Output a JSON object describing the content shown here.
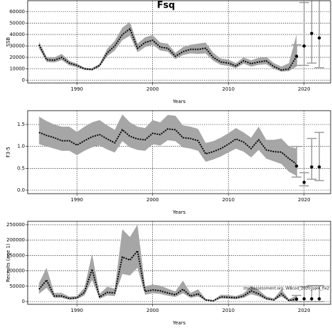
{
  "chart_data": [
    {
      "type": "band-line",
      "title": "Fsq",
      "ylabel": "SSB",
      "xlabel": "Years",
      "xlim": [
        1983.5,
        2023.5
      ],
      "xticks": [
        1990,
        2000,
        2010,
        2020
      ],
      "ylim": [
        -2400,
        69600
      ],
      "yticks": [
        0,
        10000,
        20000,
        30000,
        40000,
        50000,
        60000
      ],
      "grid": true,
      "color": "#000000",
      "band_color": "#a6a6a6",
      "error_color": "#9a9a9a",
      "x": [
        1985,
        1986,
        1987,
        1988,
        1989,
        1990,
        1991,
        1992,
        1993,
        1994,
        1995,
        1996,
        1997,
        1998,
        1999,
        2000,
        2001,
        2002,
        2003,
        2004,
        2005,
        2006,
        2007,
        2008,
        2009,
        2010,
        2011,
        2012,
        2013,
        2014,
        2015,
        2016,
        2017,
        2018,
        2019
      ],
      "values": [
        31000,
        18000,
        17500,
        20000,
        15000,
        13000,
        10000,
        9500,
        13000,
        24000,
        30000,
        40000,
        45000,
        28000,
        33000,
        35000,
        29000,
        28000,
        21000,
        25000,
        27000,
        27000,
        28000,
        20000,
        16000,
        15000,
        12500,
        17000,
        14500,
        16000,
        17000,
        12000,
        9000,
        10000,
        21000
      ],
      "lower": [
        28000,
        16000,
        15500,
        17500,
        13000,
        11500,
        9000,
        8500,
        11500,
        21000,
        26000,
        35000,
        39000,
        24500,
        29000,
        31000,
        26000,
        25000,
        18500,
        22000,
        23500,
        23000,
        23500,
        17000,
        13500,
        12500,
        10500,
        14500,
        12000,
        13500,
        14000,
        10000,
        7500,
        8000,
        12000
      ],
      "upper": [
        34000,
        20500,
        20000,
        23000,
        17000,
        14500,
        11000,
        10500,
        14500,
        27500,
        34500,
        46000,
        51000,
        32000,
        37500,
        39500,
        33000,
        32000,
        24000,
        29000,
        31000,
        32000,
        33000,
        24000,
        19000,
        18000,
        15000,
        20000,
        17500,
        19500,
        20500,
        15000,
        12000,
        15000,
        40000
      ],
      "projection": {
        "x": [
          2019,
          2020,
          2021,
          2022
        ],
        "values": [
          21000,
          30000,
          41000,
          37000
        ],
        "lower": [
          13000,
          13000,
          15000,
          11000
        ],
        "upper": [
          31000,
          68000,
          75000,
          75000
        ]
      }
    },
    {
      "type": "band-line",
      "ylabel": "F3-5",
      "xlabel": "Years",
      "xlim": [
        1983.5,
        2023.5
      ],
      "xticks": [
        1990,
        2000,
        2010,
        2020
      ],
      "ylim": [
        -0.079,
        1.816
      ],
      "yticks": [
        {
          "value": 0,
          "label": "0.0"
        },
        0.5,
        {
          "value": 1,
          "label": "1.0"
        },
        1.5
      ],
      "grid": true,
      "color": "#000000",
      "band_color": "#a6a6a6",
      "error_color": "#9a9a9a",
      "x": [
        1985,
        1986,
        1987,
        1988,
        1989,
        1990,
        1991,
        1992,
        1993,
        1994,
        1995,
        1996,
        1997,
        1998,
        1999,
        2000,
        2001,
        2002,
        2003,
        2004,
        2005,
        2006,
        2007,
        2008,
        2009,
        2010,
        2011,
        2012,
        2013,
        2014,
        2015,
        2016,
        2017,
        2018,
        2019
      ],
      "values": [
        1.32,
        1.25,
        1.2,
        1.13,
        1.13,
        1.03,
        1.13,
        1.22,
        1.27,
        1.17,
        1.08,
        1.38,
        1.23,
        1.17,
        1.15,
        1.3,
        1.27,
        1.4,
        1.38,
        1.2,
        1.18,
        1.13,
        0.83,
        0.88,
        0.95,
        1.05,
        1.17,
        1.1,
        0.95,
        1.15,
        0.92,
        0.88,
        0.87,
        0.72,
        0.6
      ],
      "lower": [
        1.05,
        1.0,
        0.95,
        0.9,
        0.9,
        0.8,
        0.9,
        0.98,
        1.02,
        0.93,
        0.86,
        1.12,
        0.98,
        0.92,
        0.9,
        1.05,
        1.02,
        1.14,
        1.12,
        0.98,
        0.95,
        0.9,
        0.65,
        0.7,
        0.77,
        0.86,
        0.95,
        0.88,
        0.75,
        0.92,
        0.72,
        0.66,
        0.6,
        0.42,
        0.33
      ],
      "upper": [
        1.68,
        1.58,
        1.5,
        1.45,
        1.45,
        1.33,
        1.45,
        1.55,
        1.6,
        1.48,
        1.38,
        1.73,
        1.55,
        1.45,
        1.42,
        1.6,
        1.55,
        1.72,
        1.7,
        1.48,
        1.45,
        1.4,
        1.08,
        1.12,
        1.2,
        1.3,
        1.42,
        1.32,
        1.2,
        1.45,
        1.15,
        1.15,
        1.18,
        1.0,
        0.95
      ],
      "projection": {
        "x": [
          2019,
          2020,
          2021,
          2022
        ],
        "values": [
          0.55,
          0.18,
          0.53,
          0.53
        ],
        "lower": [
          0.3,
          0.1,
          0.25,
          0.22
        ],
        "upper": [
          1.0,
          0.4,
          1.18,
          1.32
        ]
      }
    },
    {
      "type": "band-line",
      "ylabel": "Recruits (age 1)",
      "xlabel": "Years",
      "annotation": "stockassessment.org, WBcod_2020_spl4_fix2",
      "xlim": [
        1983.5,
        2023.5
      ],
      "xticks": [
        1990,
        2000,
        2010,
        2020
      ],
      "ylim": [
        -9000,
        261000
      ],
      "yticks": [
        0,
        50000,
        100000,
        150000,
        200000,
        250000
      ],
      "grid": true,
      "color": "#000000",
      "band_color": "#a6a6a6",
      "error_color": "#9a9a9a",
      "x": [
        1985,
        1986,
        1987,
        1988,
        1989,
        1990,
        1991,
        1992,
        1993,
        1994,
        1995,
        1996,
        1997,
        1998,
        1999,
        2000,
        2001,
        2002,
        2003,
        2004,
        2005,
        2006,
        2007,
        2008,
        2009,
        2010,
        2011,
        2012,
        2013,
        2014,
        2015,
        2016,
        2017,
        2018,
        2019
      ],
      "values": [
        40000,
        70000,
        18000,
        18000,
        10000,
        12000,
        30000,
        105000,
        15000,
        30000,
        28000,
        145000,
        135000,
        165000,
        33000,
        38000,
        35000,
        28000,
        22000,
        40000,
        18000,
        25000,
        5000,
        2000,
        15000,
        14000,
        12000,
        18000,
        35000,
        25000,
        10000,
        5000,
        25000,
        3000,
        8000
      ],
      "lower": [
        25000,
        45000,
        12000,
        12000,
        6000,
        8000,
        20000,
        70000,
        9000,
        20000,
        18000,
        90000,
        85000,
        110000,
        22000,
        27000,
        25000,
        19000,
        15000,
        27000,
        12000,
        17000,
        3000,
        1000,
        10000,
        9000,
        8000,
        12000,
        24000,
        17000,
        6000,
        3000,
        16000,
        1500,
        3000
      ],
      "upper": [
        60000,
        110000,
        28000,
        28000,
        16000,
        18000,
        45000,
        155000,
        25000,
        48000,
        42000,
        235000,
        210000,
        250000,
        50000,
        55000,
        52000,
        42000,
        33000,
        68000,
        28000,
        40000,
        9000,
        5000,
        22000,
        21000,
        18000,
        27000,
        50000,
        38000,
        17000,
        10000,
        40000,
        8000,
        20000
      ],
      "projection": {
        "x": [
          2019,
          2020,
          2021,
          2022
        ],
        "values": [
          8000,
          9000,
          9000,
          9000
        ],
        "lower": [
          0,
          0,
          0,
          0
        ],
        "upper": [
          20000,
          48000,
          52000,
          52000
        ]
      }
    }
  ]
}
